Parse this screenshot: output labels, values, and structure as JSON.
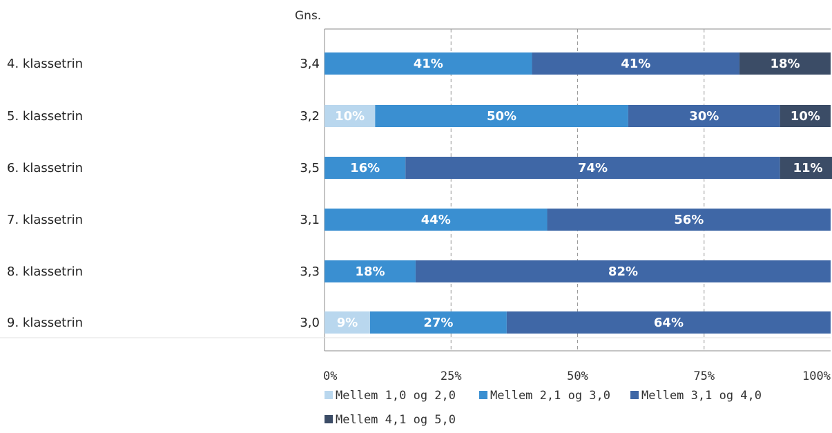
{
  "chart_data": {
    "type": "bar",
    "orientation": "horizontal",
    "stacked": true,
    "percent_stacked": true,
    "avg_column_title": "Gns.",
    "categories": [
      "4. klassetrin",
      "5. klassetrin",
      "6. klassetrin",
      "7. klassetrin",
      "8. klassetrin",
      "9. klassetrin"
    ],
    "averages": [
      "3,4",
      "3,2",
      "3,5",
      "3,1",
      "3,3",
      "3,0"
    ],
    "series": [
      {
        "name": "Mellem 1,0 og 2,0",
        "color": "#b9d7ee",
        "values": [
          0,
          10,
          0,
          0,
          0,
          9
        ],
        "labels": [
          "",
          "10%",
          "",
          "",
          "",
          "9%"
        ]
      },
      {
        "name": "Mellem 2,1 og 3,0",
        "color": "#3a8fd1",
        "values": [
          41,
          50,
          16,
          44,
          18,
          27
        ],
        "labels": [
          "41%",
          "50%",
          "16%",
          "44%",
          "18%",
          "27%"
        ]
      },
      {
        "name": "Mellem 3,1 og 4,0",
        "color": "#3f67a6",
        "values": [
          41,
          30,
          74,
          56,
          82,
          64
        ],
        "labels": [
          "41%",
          "30%",
          "74%",
          "56%",
          "82%",
          "64%"
        ]
      },
      {
        "name": "Mellem 4,1 og 5,0",
        "color": "#3b4c66",
        "values": [
          18,
          10,
          11,
          0,
          0,
          0
        ],
        "labels": [
          "18%",
          "10%",
          "11%",
          "",
          "",
          ""
        ]
      }
    ],
    "x_ticks": [
      "0%",
      "25%",
      "50%",
      "75%",
      "100%"
    ],
    "xlim": [
      0,
      100
    ],
    "grid": "vertical-dashed",
    "legend_position": "bottom"
  }
}
